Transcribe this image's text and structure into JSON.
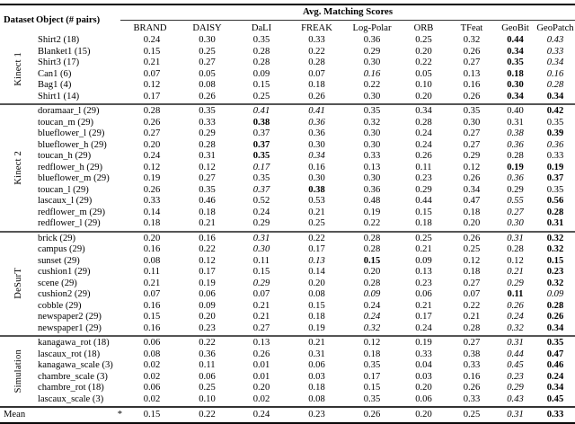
{
  "table": {
    "group_header": "Avg. Matching Scores",
    "col_dataset": "Dataset",
    "col_object": "Object (# pairs)",
    "methods": [
      "BRAND",
      "DAISY",
      "DaLI",
      "FREAK",
      "Log-Polar",
      "ORB",
      "TFeat",
      "GeoBit",
      "GeoPatch"
    ],
    "style_codes": {
      "n": "normal",
      "b": "bold-best",
      "i": "italic-second-best"
    },
    "text_color": "#000000",
    "rule_color": "#000000",
    "sections": [
      {
        "dataset": "Kinect 1",
        "rows": [
          {
            "object": "Shirt2 (18)",
            "values": [
              "0.24",
              "0.30",
              "0.35",
              "0.33",
              "0.36",
              "0.25",
              "0.32",
              "0.44",
              "0.43"
            ],
            "styles": "nnnnnnnbi"
          },
          {
            "object": "Blanket1 (15)",
            "values": [
              "0.15",
              "0.25",
              "0.28",
              "0.22",
              "0.29",
              "0.20",
              "0.26",
              "0.34",
              "0.33"
            ],
            "styles": "nnnnnnnbi"
          },
          {
            "object": "Shirt3 (17)",
            "values": [
              "0.21",
              "0.27",
              "0.28",
              "0.28",
              "0.30",
              "0.22",
              "0.27",
              "0.35",
              "0.34"
            ],
            "styles": "nnnnnnnbi"
          },
          {
            "object": "Can1 (6)",
            "values": [
              "0.07",
              "0.05",
              "0.09",
              "0.07",
              "0.16",
              "0.05",
              "0.13",
              "0.18",
              "0.16"
            ],
            "styles": "nnnninnbi"
          },
          {
            "object": "Bag1 (4)",
            "values": [
              "0.12",
              "0.08",
              "0.15",
              "0.18",
              "0.22",
              "0.10",
              "0.16",
              "0.30",
              "0.28"
            ],
            "styles": "nnnnnnnbi"
          },
          {
            "object": "Shirt1 (14)",
            "values": [
              "0.17",
              "0.26",
              "0.25",
              "0.26",
              "0.30",
              "0.20",
              "0.26",
              "0.34",
              "0.34"
            ],
            "styles": "nnnnnnnbb"
          }
        ]
      },
      {
        "dataset": "Kinect 2",
        "rows": [
          {
            "object": "doramaar_l (29)",
            "values": [
              "0.28",
              "0.35",
              "0.41",
              "0.41",
              "0.35",
              "0.34",
              "0.35",
              "0.40",
              "0.42"
            ],
            "styles": "nniinnnnb"
          },
          {
            "object": "toucan_m (29)",
            "values": [
              "0.26",
              "0.33",
              "0.38",
              "0.36",
              "0.32",
              "0.28",
              "0.30",
              "0.31",
              "0.35"
            ],
            "styles": "nnbinnnnn"
          },
          {
            "object": "blueflower_l (29)",
            "values": [
              "0.27",
              "0.29",
              "0.37",
              "0.36",
              "0.30",
              "0.24",
              "0.27",
              "0.38",
              "0.39"
            ],
            "styles": "nnnnnnnib"
          },
          {
            "object": "blueflower_h (29)",
            "values": [
              "0.20",
              "0.28",
              "0.37",
              "0.30",
              "0.30",
              "0.24",
              "0.27",
              "0.36",
              "0.36"
            ],
            "styles": "nnbnnnnii"
          },
          {
            "object": "toucan_h (29)",
            "values": [
              "0.24",
              "0.31",
              "0.35",
              "0.34",
              "0.33",
              "0.26",
              "0.29",
              "0.28",
              "0.33"
            ],
            "styles": "nnbinnnnn"
          },
          {
            "object": "redflower_h (29)",
            "values": [
              "0.12",
              "0.12",
              "0.17",
              "0.16",
              "0.13",
              "0.11",
              "0.12",
              "0.19",
              "0.19"
            ],
            "styles": "nninnnnbb"
          },
          {
            "object": "blueflower_m (29)",
            "values": [
              "0.19",
              "0.27",
              "0.35",
              "0.30",
              "0.30",
              "0.23",
              "0.26",
              "0.36",
              "0.37"
            ],
            "styles": "nnnnnnnib"
          },
          {
            "object": "toucan_l (29)",
            "values": [
              "0.26",
              "0.35",
              "0.37",
              "0.38",
              "0.36",
              "0.29",
              "0.34",
              "0.29",
              "0.35"
            ],
            "styles": "nnibnnnnn"
          },
          {
            "object": "lascaux_l (29)",
            "values": [
              "0.33",
              "0.46",
              "0.52",
              "0.53",
              "0.48",
              "0.44",
              "0.47",
              "0.55",
              "0.56"
            ],
            "styles": "nnnnnnnib"
          },
          {
            "object": "redflower_m (29)",
            "values": [
              "0.14",
              "0.18",
              "0.24",
              "0.21",
              "0.19",
              "0.15",
              "0.18",
              "0.27",
              "0.28"
            ],
            "styles": "nnnnnnnib"
          },
          {
            "object": "redflower_l (29)",
            "values": [
              "0.18",
              "0.21",
              "0.29",
              "0.25",
              "0.22",
              "0.18",
              "0.20",
              "0.30",
              "0.31"
            ],
            "styles": "nnnnnnnib"
          }
        ]
      },
      {
        "dataset": "DeSurT",
        "rows": [
          {
            "object": "brick (29)",
            "values": [
              "0.20",
              "0.16",
              "0.31",
              "0.22",
              "0.28",
              "0.25",
              "0.26",
              "0.31",
              "0.32"
            ],
            "styles": "nninnnnib"
          },
          {
            "object": "campus (29)",
            "values": [
              "0.16",
              "0.22",
              "0.30",
              "0.17",
              "0.28",
              "0.21",
              "0.25",
              "0.28",
              "0.32"
            ],
            "styles": "nninnnnnb"
          },
          {
            "object": "sunset (29)",
            "values": [
              "0.08",
              "0.12",
              "0.11",
              "0.13",
              "0.15",
              "0.09",
              "0.12",
              "0.12",
              "0.15"
            ],
            "styles": "nnnibnnnb"
          },
          {
            "object": "cushion1 (29)",
            "values": [
              "0.11",
              "0.17",
              "0.15",
              "0.14",
              "0.20",
              "0.13",
              "0.18",
              "0.21",
              "0.23"
            ],
            "styles": "nnnnnnnib"
          },
          {
            "object": "scene (29)",
            "values": [
              "0.21",
              "0.19",
              "0.29",
              "0.20",
              "0.28",
              "0.23",
              "0.27",
              "0.29",
              "0.32"
            ],
            "styles": "nninnnnib"
          },
          {
            "object": "cushion2 (29)",
            "values": [
              "0.07",
              "0.06",
              "0.07",
              "0.08",
              "0.09",
              "0.06",
              "0.07",
              "0.11",
              "0.09"
            ],
            "styles": "nnnninnbi"
          },
          {
            "object": "cobble (29)",
            "values": [
              "0.16",
              "0.09",
              "0.21",
              "0.15",
              "0.24",
              "0.21",
              "0.22",
              "0.26",
              "0.28"
            ],
            "styles": "nnnnnnnib"
          },
          {
            "object": "newspaper2 (29)",
            "values": [
              "0.15",
              "0.20",
              "0.21",
              "0.18",
              "0.24",
              "0.17",
              "0.21",
              "0.24",
              "0.26"
            ],
            "styles": "nnnninnib"
          },
          {
            "object": "newspaper1 (29)",
            "values": [
              "0.16",
              "0.23",
              "0.27",
              "0.19",
              "0.32",
              "0.24",
              "0.28",
              "0.32",
              "0.34"
            ],
            "styles": "nnnninnib"
          }
        ]
      },
      {
        "dataset": "Simulation",
        "rows": [
          {
            "object": "kanagawa_rot (18)",
            "values": [
              "0.06",
              "0.22",
              "0.13",
              "0.21",
              "0.12",
              "0.19",
              "0.27",
              "0.31",
              "0.35"
            ],
            "styles": "nnnnnnnib"
          },
          {
            "object": "lascaux_rot (18)",
            "values": [
              "0.08",
              "0.36",
              "0.26",
              "0.31",
              "0.18",
              "0.33",
              "0.38",
              "0.44",
              "0.47"
            ],
            "styles": "nnnnnnnib"
          },
          {
            "object": "kanagawa_scale (3)",
            "values": [
              "0.02",
              "0.11",
              "0.01",
              "0.06",
              "0.35",
              "0.04",
              "0.33",
              "0.45",
              "0.46"
            ],
            "styles": "nnnnnnnib"
          },
          {
            "object": "chambre_scale (3)",
            "values": [
              "0.02",
              "0.06",
              "0.01",
              "0.03",
              "0.17",
              "0.03",
              "0.16",
              "0.23",
              "0.24"
            ],
            "styles": "nnnnnnnib"
          },
          {
            "object": "chambre_rot (18)",
            "values": [
              "0.06",
              "0.25",
              "0.20",
              "0.18",
              "0.15",
              "0.20",
              "0.26",
              "0.29",
              "0.34"
            ],
            "styles": "nnnnnnnib"
          },
          {
            "object": "lascaux_scale (3)",
            "values": [
              "0.02",
              "0.10",
              "0.02",
              "0.08",
              "0.35",
              "0.06",
              "0.33",
              "0.43",
              "0.45"
            ],
            "styles": "nnnnnnnib"
          }
        ]
      }
    ],
    "mean": {
      "label": "Mean",
      "object": "*",
      "values": [
        "0.15",
        "0.22",
        "0.24",
        "0.23",
        "0.26",
        "0.20",
        "0.25",
        "0.31",
        "0.33"
      ],
      "styles": "nnnnnnnib"
    }
  }
}
